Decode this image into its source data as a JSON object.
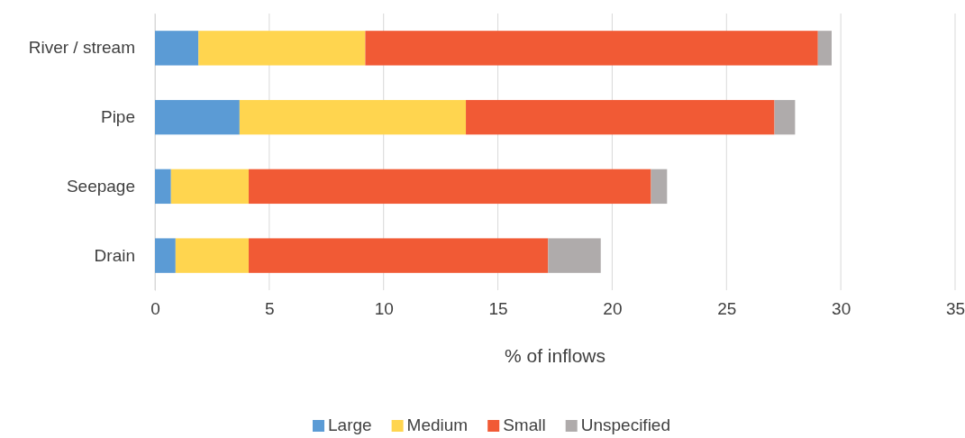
{
  "chart_data": {
    "type": "bar",
    "orientation": "horizontal",
    "stacked": true,
    "xlabel": "% of inflows",
    "categories": [
      "River / stream",
      "Pipe",
      "Seepage",
      "Drain"
    ],
    "series": [
      {
        "name": "Large",
        "color": "#5b9bd5",
        "values": [
          1.9,
          3.7,
          0.7,
          0.9
        ]
      },
      {
        "name": "Medium",
        "color": "#ffd54f",
        "values": [
          7.3,
          9.9,
          3.4,
          3.2
        ]
      },
      {
        "name": "Small",
        "color": "#f15a35",
        "values": [
          19.8,
          13.5,
          17.6,
          13.1
        ]
      },
      {
        "name": "Unspecified",
        "color": "#afabab",
        "values": [
          0.6,
          0.9,
          0.7,
          2.3
        ]
      }
    ],
    "xlim": [
      0,
      35
    ],
    "xticks": [
      0,
      5,
      10,
      15,
      20,
      25,
      30,
      35
    ],
    "grid": "x",
    "legend": "bottom"
  }
}
